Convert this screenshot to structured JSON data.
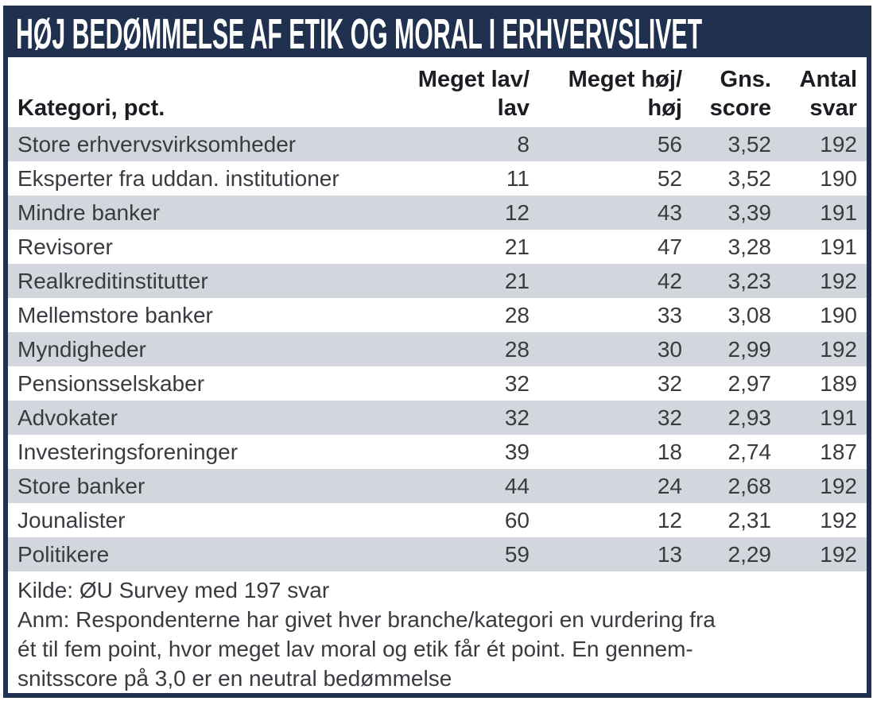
{
  "chart_data": {
    "type": "table",
    "title": "HØJ BEDØMMELSE AF ETIK OG MORAL I ERHVERVSLIVET",
    "columns": [
      "Kategori, pct.",
      "Meget lav/lav",
      "Meget høj/høj",
      "Gns. score",
      "Antal svar"
    ],
    "rows": [
      [
        "Store erhvervsvirksomheder",
        "8",
        "56",
        "3,52",
        "192"
      ],
      [
        "Eksperter fra uddan. institutioner",
        "11",
        "52",
        "3,52",
        "190"
      ],
      [
        "Mindre banker",
        "12",
        "43",
        "3,39",
        "191"
      ],
      [
        "Revisorer",
        "21",
        "47",
        "3,28",
        "191"
      ],
      [
        "Realkreditinstitutter",
        "21",
        "42",
        "3,23",
        "192"
      ],
      [
        "Mellemstore banker",
        "28",
        "33",
        "3,08",
        "190"
      ],
      [
        "Myndigheder",
        "28",
        "30",
        "2,99",
        "192"
      ],
      [
        "Pensionsselskaber",
        "32",
        "32",
        "2,97",
        "189"
      ],
      [
        "Advokater",
        "32",
        "32",
        "2,93",
        "191"
      ],
      [
        "Investeringsforeninger",
        "39",
        "18",
        "2,74",
        "187"
      ],
      [
        "Store banker",
        "44",
        "24",
        "2,68",
        "192"
      ],
      [
        "Jounalister",
        "60",
        "12",
        "2,31",
        "192"
      ],
      [
        "Politikere",
        "59",
        "13",
        "2,29",
        "192"
      ]
    ],
    "source": "Kilde: ØU Survey med 197 svar",
    "note": "Anm: Respondenterne har givet hver branche/kategori en vurdering fra ét til fem point, hvor meget lav moral og etik får ét point. En gennemsnitsscore på 3,0 er en neutral bedømmelse"
  },
  "header": {
    "col_labels": [
      "Kategori, pct.",
      "Meget lav/\nlav",
      "Meget høj/\nhøj",
      "Gns.\nscore",
      "Antal\nsvar"
    ]
  },
  "footer": {
    "kilde": "Kilde: ØU Survey med 197 svar",
    "anm_lines": [
      "Anm: Respondenterne har givet hver branche/kategori en vurdering fra",
      "ét til fem point, hvor meget lav moral og etik får ét point. En gennem-",
      "snitsscore på 3,0 er en neutral bedømmelse"
    ]
  },
  "colors": {
    "navy": "#20314f",
    "row_gray": "#d4d6de",
    "row_text": "#3a3a41",
    "header_text": "#1c1c22",
    "title_text": "#ffffff"
  }
}
